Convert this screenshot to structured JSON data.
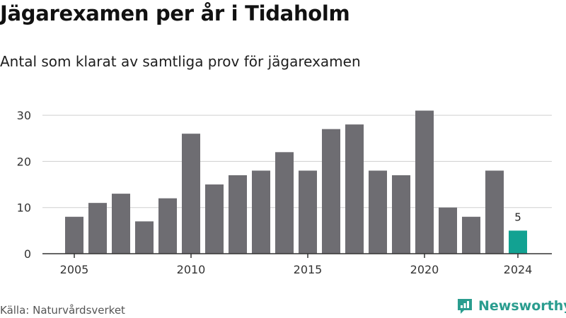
{
  "title": "Jägarexamen per år i Tidaholm",
  "subtitle": "Antal som klarat av samtliga prov för jägarexamen",
  "source": "Källa: Naturvårdsverket",
  "brand": {
    "name": "Newsworthy",
    "icon": "newsworthy-logo-icon",
    "color": "#2a9d8f"
  },
  "colors": {
    "bar": "#6e6d72",
    "highlight": "#12a292",
    "axis": "#333333",
    "grid": "#cfcfcf"
  },
  "chart_data": {
    "type": "bar",
    "title": "Jägarexamen per år i Tidaholm",
    "subtitle": "Antal som klarat av samtliga prov för jägarexamen",
    "categories": [
      2005,
      2006,
      2007,
      2008,
      2009,
      2010,
      2011,
      2012,
      2013,
      2014,
      2015,
      2016,
      2017,
      2018,
      2019,
      2020,
      2021,
      2022,
      2023,
      2024
    ],
    "values": [
      8,
      11,
      13,
      7,
      12,
      26,
      15,
      17,
      18,
      22,
      18,
      27,
      28,
      18,
      17,
      31,
      10,
      8,
      18,
      5
    ],
    "highlight_index": 19,
    "data_labels": [
      {
        "index": 19,
        "text": "5"
      }
    ],
    "x_ticks": [
      "2005",
      "2010",
      "2015",
      "2020",
      "2024"
    ],
    "y_ticks": [
      "0",
      "10",
      "20",
      "30"
    ],
    "ylim": [
      0,
      32
    ],
    "xlabel": "",
    "ylabel": "",
    "grid": true
  }
}
